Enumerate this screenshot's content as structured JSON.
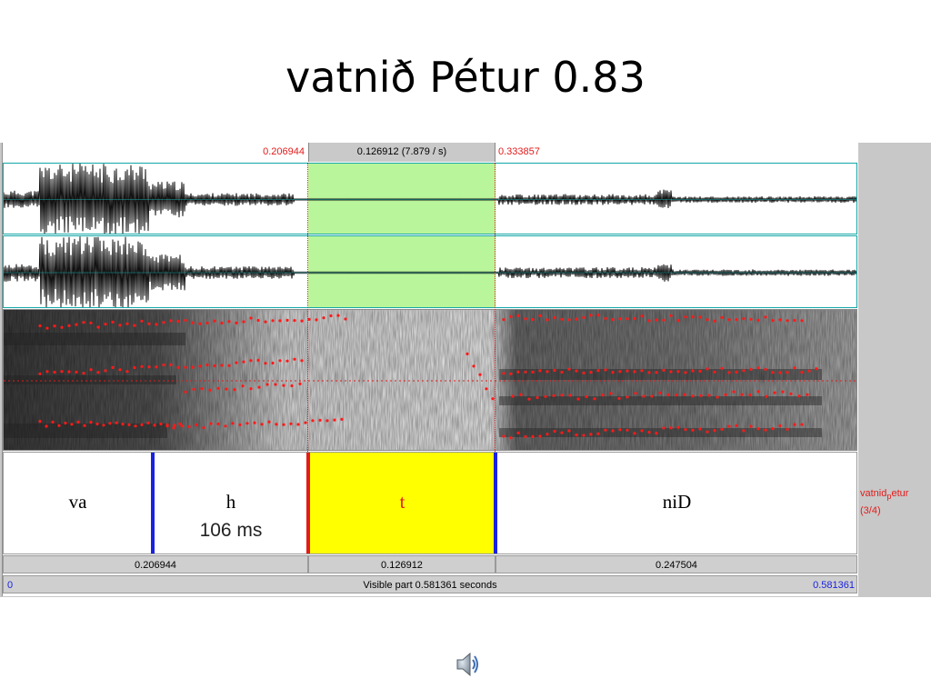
{
  "slide": {
    "title": "vatnið Pétur 0.83"
  },
  "editor": {
    "selection": {
      "start": "0.206944",
      "duration": "0.126912 (7.879 / s)",
      "end": "0.333857"
    },
    "tier": {
      "name": "vatnid",
      "name_sub": "p",
      "name_rest": "etur",
      "index": "(3/4)",
      "segments": [
        {
          "label": "va",
          "sub": ""
        },
        {
          "label": "h",
          "sub": "106 ms"
        },
        {
          "label": "t",
          "sub": ""
        },
        {
          "label": "niD",
          "sub": ""
        }
      ]
    },
    "durations": [
      "0.206944",
      "0.126912",
      "0.247504"
    ],
    "visible": {
      "start": "0",
      "text": "Visible part 0.581361 seconds",
      "end": "0.581361"
    }
  },
  "colors": {
    "selection": "#b9f59a",
    "highlight": "#ffff00",
    "boundary": "#1a22e0",
    "cursor": "#e31b1b",
    "frame": "#14a7a7"
  },
  "icons": {
    "audio": "speaker-icon"
  }
}
